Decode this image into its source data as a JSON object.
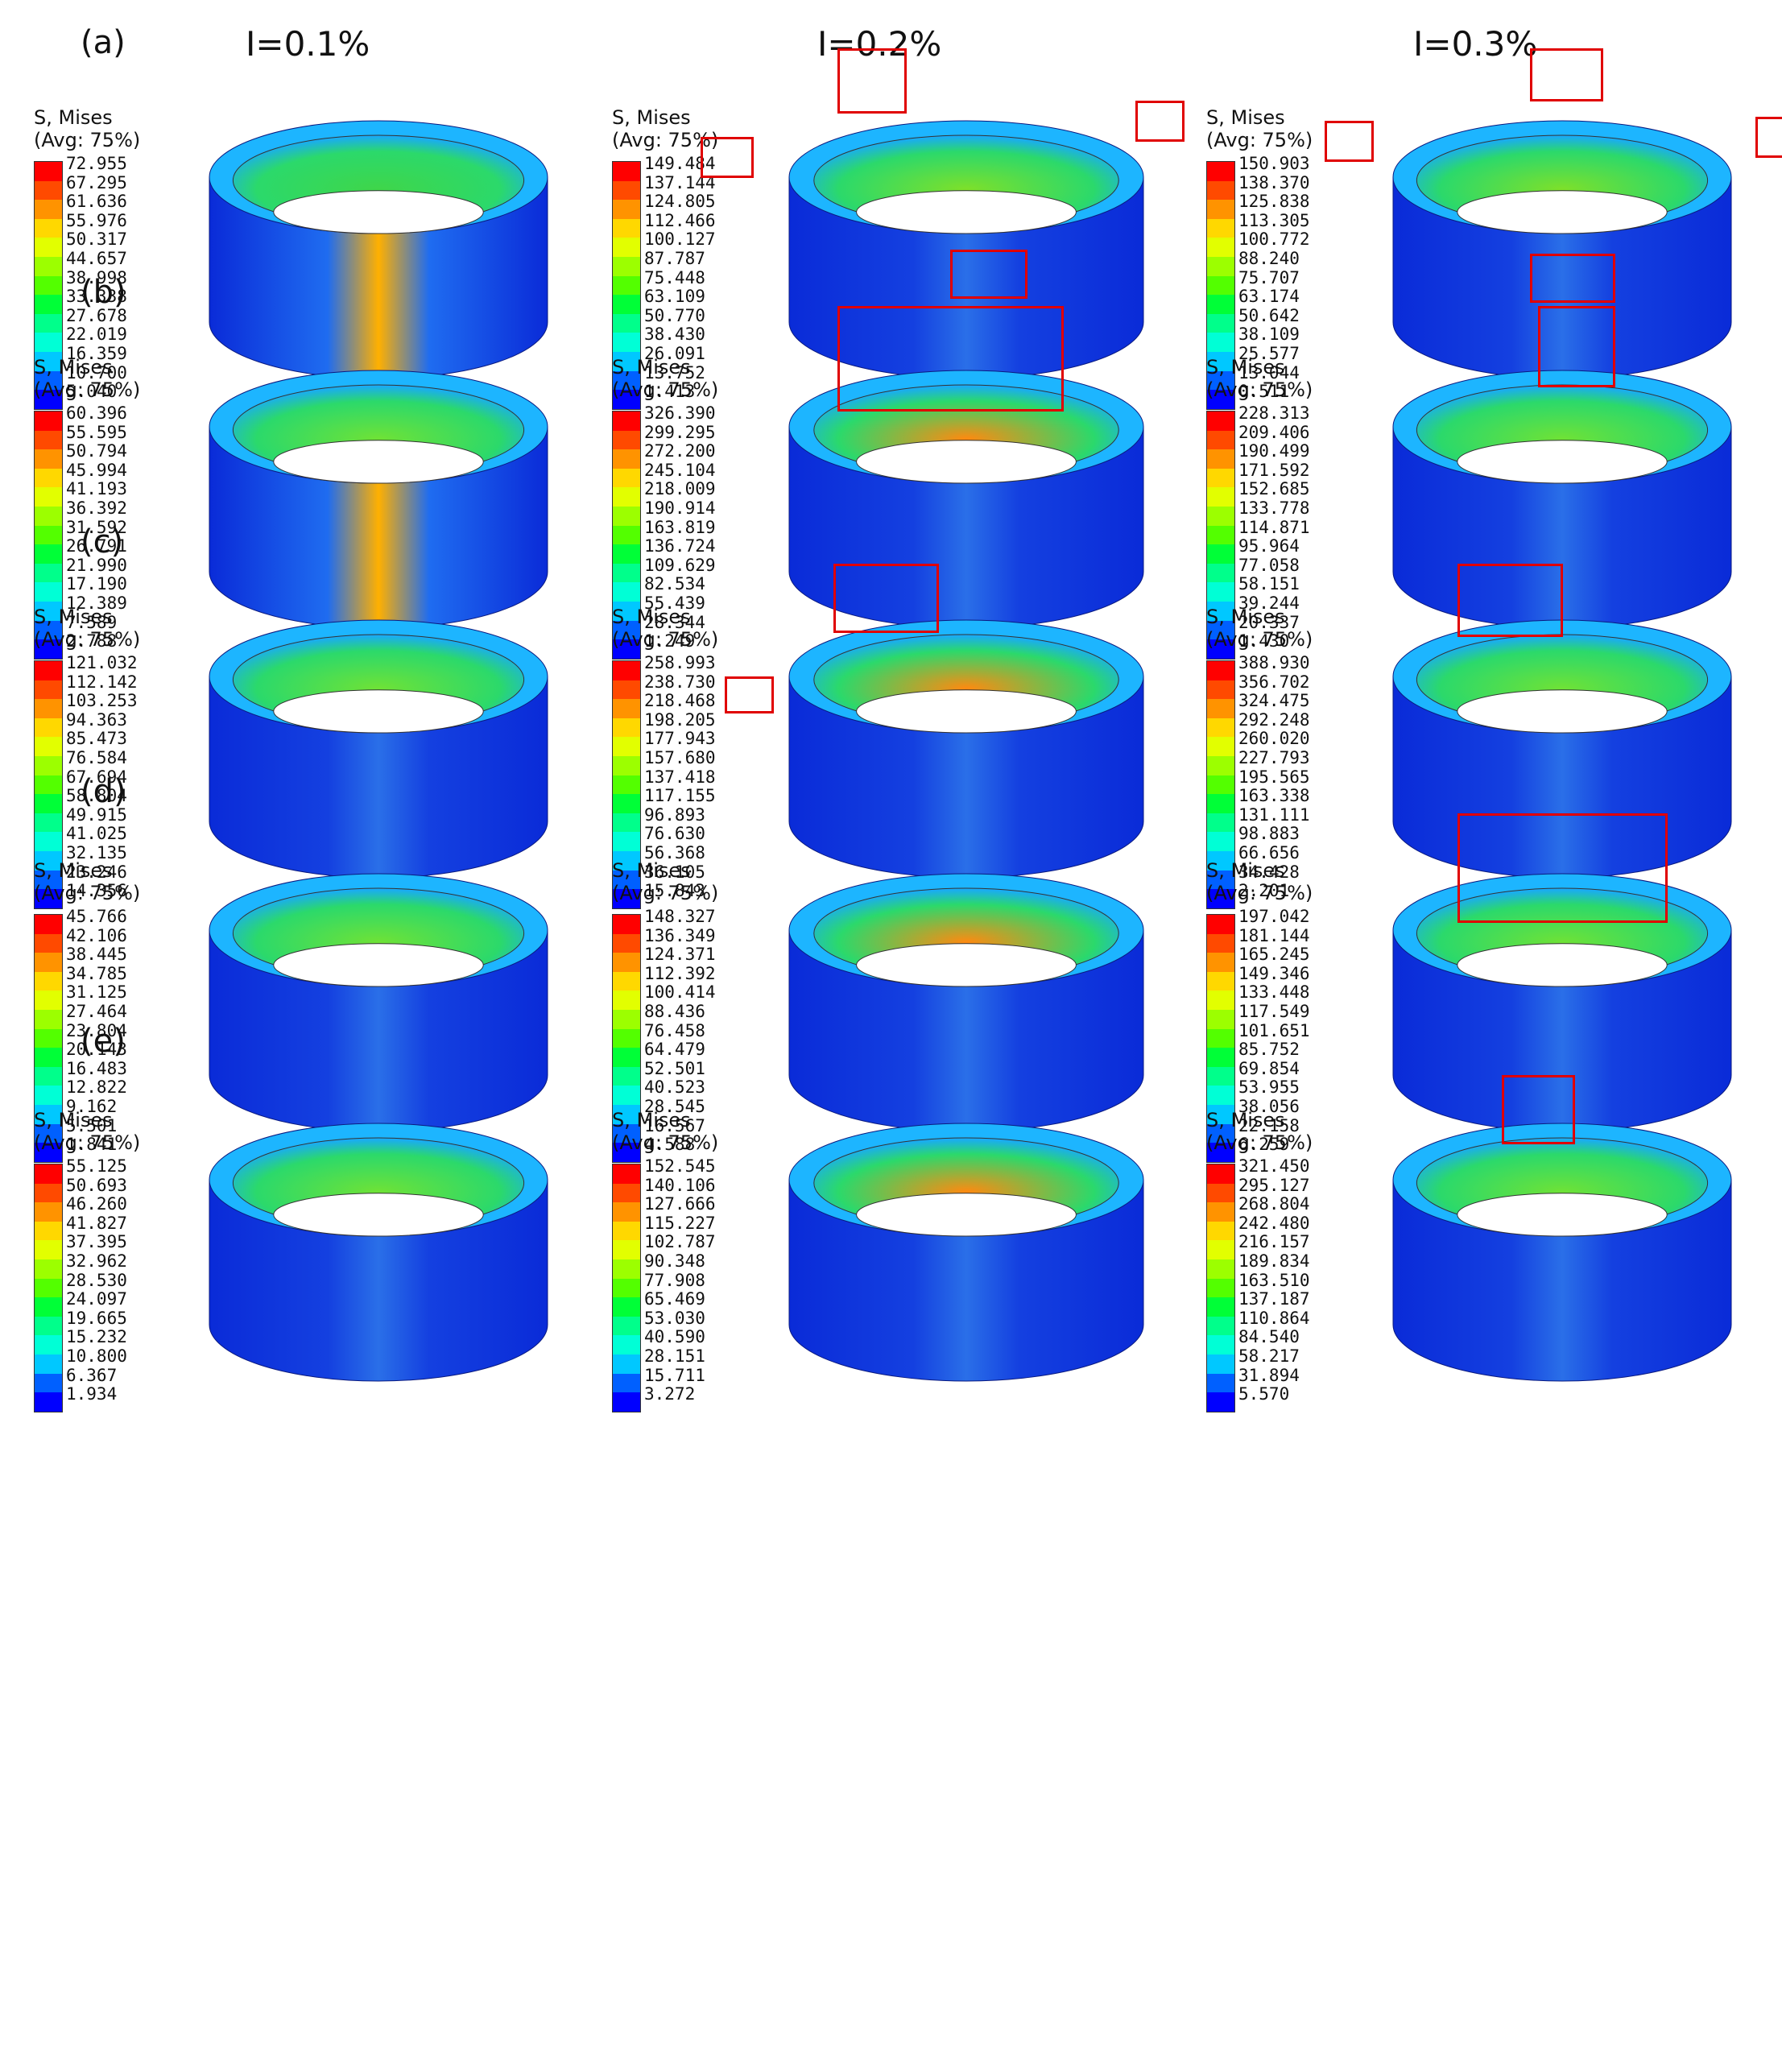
{
  "column_headers": [
    "I=0.1%",
    "I=0.2%",
    "I=0.3%"
  ],
  "legend_title_line1": "S, Mises",
  "legend_title_line2": "(Avg: 75%)",
  "legend_colors": [
    "#ff0000",
    "#ff4a00",
    "#ff9300",
    "#ffd800",
    "#e2ff00",
    "#9cff00",
    "#53ff00",
    "#00ff37",
    "#00ff8b",
    "#00ffd6",
    "#00c8ff",
    "#0060ff",
    "#0000ff"
  ],
  "rows": [
    {
      "label": "(a)",
      "cells": [
        {
          "ticks": [
            "72.955",
            "67.295",
            "61.636",
            "55.976",
            "50.317",
            "44.657",
            "38.998",
            "33.338",
            "27.678",
            "22.019",
            "16.359",
            "10.700",
            "5.040"
          ],
          "highlights": 0
        },
        {
          "ticks": [
            "149.484",
            "137.144",
            "124.805",
            "112.466",
            "100.127",
            "87.787",
            "75.448",
            "63.109",
            "50.770",
            "38.430",
            "26.091",
            "13.752",
            "1.413"
          ],
          "highlights": 4
        },
        {
          "ticks": [
            "150.903",
            "138.370",
            "125.838",
            "113.305",
            "100.772",
            "88.240",
            "75.707",
            "63.174",
            "50.642",
            "38.109",
            "25.577",
            "13.044",
            "0.511"
          ],
          "highlights": 4
        }
      ]
    },
    {
      "label": "(b)",
      "cells": [
        {
          "ticks": [
            "60.396",
            "55.595",
            "50.794",
            "45.994",
            "41.193",
            "36.392",
            "31.592",
            "26.791",
            "21.990",
            "17.190",
            "12.389",
            "7.589",
            "2.788"
          ],
          "highlights": 0
        },
        {
          "ticks": [
            "326.390",
            "299.295",
            "272.200",
            "245.104",
            "218.009",
            "190.914",
            "163.819",
            "136.724",
            "109.629",
            "82.534",
            "55.439",
            "28.344",
            "1.249"
          ],
          "highlights": 1
        },
        {
          "ticks": [
            "228.313",
            "209.406",
            "190.499",
            "171.592",
            "152.685",
            "133.778",
            "114.871",
            "95.964",
            "77.058",
            "58.151",
            "39.244",
            "20.337",
            "1.430"
          ],
          "highlights": 1
        }
      ]
    },
    {
      "label": "(c)",
      "cells": [
        {
          "ticks": [
            "121.032",
            "112.142",
            "103.253",
            "94.363",
            "85.473",
            "76.584",
            "67.694",
            "58.804",
            "49.915",
            "41.025",
            "32.135",
            "23.246",
            "14.356"
          ],
          "highlights": 0
        },
        {
          "ticks": [
            "258.993",
            "238.730",
            "218.468",
            "198.205",
            "177.943",
            "157.680",
            "137.418",
            "117.155",
            "96.893",
            "76.630",
            "56.368",
            "36.105",
            "15.843"
          ],
          "highlights": 2
        },
        {
          "ticks": [
            "388.930",
            "356.702",
            "324.475",
            "292.248",
            "260.020",
            "227.793",
            "195.565",
            "163.338",
            "131.111",
            "98.883",
            "66.656",
            "34.428",
            "2.201"
          ],
          "highlights": 1
        }
      ]
    },
    {
      "label": "(d)",
      "cells": [
        {
          "ticks": [
            "45.766",
            "42.106",
            "38.445",
            "34.785",
            "31.125",
            "27.464",
            "23.804",
            "20.143",
            "16.483",
            "12.822",
            "9.162",
            "5.501",
            "1.841"
          ],
          "highlights": 0
        },
        {
          "ticks": [
            "148.327",
            "136.349",
            "124.371",
            "112.392",
            "100.414",
            "88.436",
            "76.458",
            "64.479",
            "52.501",
            "40.523",
            "28.545",
            "16.567",
            "4.588"
          ],
          "highlights": 0
        },
        {
          "ticks": [
            "197.042",
            "181.144",
            "165.245",
            "149.346",
            "133.448",
            "117.549",
            "101.651",
            "85.752",
            "69.854",
            "53.955",
            "38.056",
            "22.158",
            "6.259"
          ],
          "highlights": 1
        }
      ]
    },
    {
      "label": "(e)",
      "cells": [
        {
          "ticks": [
            "55.125",
            "50.693",
            "46.260",
            "41.827",
            "37.395",
            "32.962",
            "28.530",
            "24.097",
            "19.665",
            "15.232",
            "10.800",
            "6.367",
            "1.934"
          ],
          "highlights": 0
        },
        {
          "ticks": [
            "152.545",
            "140.106",
            "127.666",
            "115.227",
            "102.787",
            "90.348",
            "77.908",
            "65.469",
            "53.030",
            "40.590",
            "28.151",
            "15.711",
            "3.272"
          ],
          "highlights": 0
        },
        {
          "ticks": [
            "321.450",
            "295.127",
            "268.804",
            "242.480",
            "216.157",
            "189.834",
            "163.510",
            "137.187",
            "110.864",
            "84.540",
            "58.217",
            "31.894",
            "5.570"
          ],
          "highlights": 1
        }
      ]
    }
  ]
}
